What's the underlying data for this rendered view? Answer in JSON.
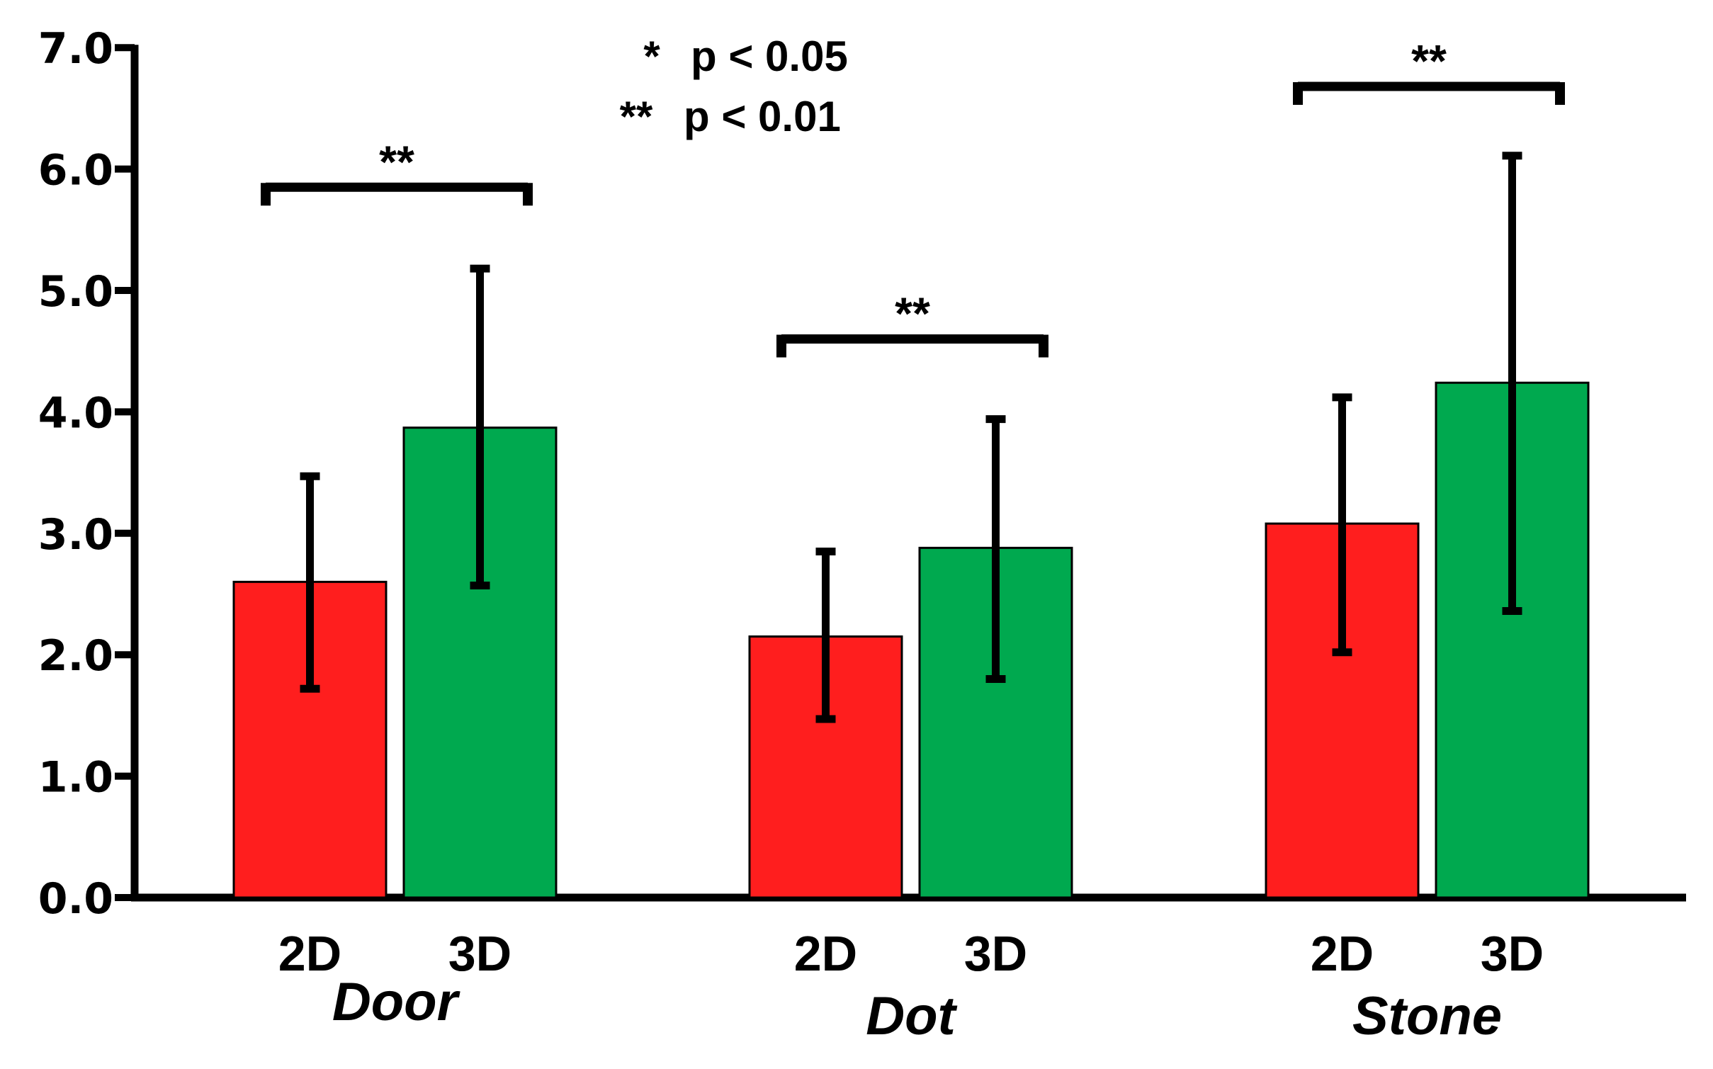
{
  "chart_data": {
    "type": "bar",
    "title": "",
    "xlabel": "",
    "ylabel": "",
    "ylim": [
      0,
      7
    ],
    "yticks": [
      "0.0",
      "1.0",
      "2.0",
      "3.0",
      "4.0",
      "5.0",
      "6.0",
      "7.0"
    ],
    "categories": [
      "Door",
      "Dot",
      "Stone"
    ],
    "series": [
      {
        "name": "2D",
        "color": "#ff1e1e",
        "values": [
          2.6,
          2.15,
          3.08
        ],
        "err_low": [
          1.72,
          1.47,
          2.02
        ],
        "err_high": [
          3.47,
          2.85,
          4.12
        ]
      },
      {
        "name": "3D",
        "color": "#00a94f",
        "values": [
          3.87,
          2.88,
          4.24
        ],
        "err_low": [
          2.57,
          1.8,
          2.36
        ],
        "err_high": [
          5.18,
          3.94,
          6.11
        ]
      }
    ],
    "significance": [
      {
        "group": "Door",
        "label": "**",
        "level": 5.85
      },
      {
        "group": "Dot",
        "label": "**",
        "level": 4.6
      },
      {
        "group": "Stone",
        "label": "**",
        "level": 6.68
      }
    ],
    "legend": [
      {
        "marker": "*",
        "text": "p < 0.05"
      },
      {
        "marker": "**",
        "text": "p < 0.01"
      }
    ]
  }
}
